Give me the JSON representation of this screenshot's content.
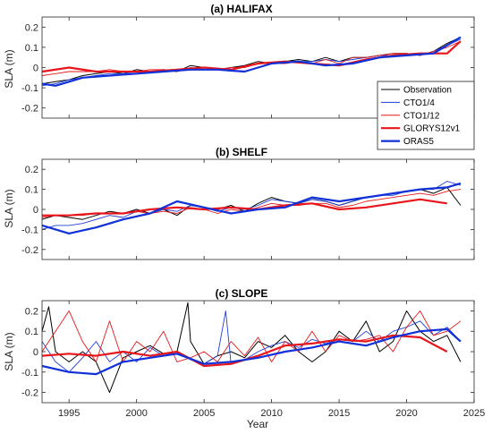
{
  "figure": {
    "xlabel": "Year",
    "x_ticks": [
      1995,
      2000,
      2005,
      2010,
      2015,
      2020,
      2025
    ],
    "xlim": [
      1993,
      2025
    ],
    "colors": {
      "observation": "#000000",
      "cto14": "#1f3fd9",
      "cto112": "#e31a1c",
      "glorys": "#e8151b",
      "oras5": "#1030d8"
    }
  },
  "legend": {
    "placement": "right, inside panel (a)",
    "entries": [
      {
        "label": "Observation",
        "color": "#000000",
        "thick": false
      },
      {
        "label": "CTO1/4",
        "color": "#1f3fd9",
        "thick": false
      },
      {
        "label": "CTO1/12",
        "color": "#e31a1c",
        "thick": false
      },
      {
        "label": "GLORYS12v1",
        "color": "#e8151b",
        "thick": true
      },
      {
        "label": "ORAS5",
        "color": "#1030d8",
        "thick": true
      }
    ]
  },
  "chart_data": [
    {
      "type": "line",
      "title": "(a) HALIFAX",
      "ylabel": "SLA (m)",
      "ylim": [
        -0.25,
        0.25
      ],
      "y_ticks": [
        -0.2,
        -0.1,
        0,
        0.1,
        0.2
      ],
      "xlim": [
        1993,
        2025
      ],
      "series": [
        {
          "name": "Observation",
          "key": "obs",
          "x": [
            1993,
            1994,
            1995,
            1996,
            1997,
            1998,
            1999,
            2000,
            2001,
            2002,
            2003,
            2004,
            2005,
            2006,
            2007,
            2008,
            2009,
            2010,
            2011,
            2012,
            2013,
            2014,
            2015,
            2016,
            2017,
            2018,
            2019,
            2020,
            2021,
            2022,
            2023,
            2024
          ],
          "y": [
            -0.08,
            -0.07,
            -0.06,
            -0.04,
            -0.03,
            -0.02,
            -0.03,
            -0.01,
            -0.02,
            -0.01,
            -0.02,
            0.01,
            0.0,
            -0.01,
            0.0,
            0.01,
            0.03,
            0.02,
            0.03,
            0.04,
            0.03,
            0.05,
            0.03,
            0.05,
            0.05,
            0.06,
            0.07,
            0.07,
            0.06,
            0.08,
            0.12,
            0.15
          ]
        },
        {
          "name": "CTO1/4",
          "key": "cto14",
          "x": [
            1993,
            1994,
            1995,
            1996,
            1997,
            1998,
            1999,
            2000,
            2001,
            2002,
            2003,
            2004,
            2005,
            2006,
            2007,
            2008,
            2009,
            2010,
            2011,
            2012,
            2013,
            2014,
            2015,
            2016,
            2017,
            2018,
            2019,
            2020,
            2021,
            2022,
            2023,
            2024
          ],
          "y": [
            -0.09,
            -0.08,
            -0.06,
            -0.05,
            -0.04,
            -0.03,
            -0.03,
            -0.02,
            -0.02,
            -0.01,
            -0.02,
            0.0,
            -0.01,
            -0.01,
            0.0,
            0.0,
            0.02,
            0.02,
            0.03,
            0.03,
            0.03,
            0.04,
            0.03,
            0.04,
            0.05,
            0.06,
            0.06,
            0.07,
            0.06,
            0.08,
            0.11,
            0.14
          ]
        },
        {
          "name": "CTO1/12",
          "key": "cto112",
          "x": [
            1993,
            1994,
            1995,
            1996,
            1997,
            1998,
            1999,
            2000,
            2001,
            2002,
            2003,
            2004,
            2005,
            2006,
            2007,
            2008,
            2009,
            2010,
            2011,
            2012,
            2013,
            2014,
            2015,
            2016,
            2017,
            2018,
            2019,
            2020,
            2021,
            2022,
            2023,
            2024
          ],
          "y": [
            -0.04,
            -0.03,
            -0.02,
            -0.02,
            -0.02,
            -0.01,
            -0.02,
            -0.02,
            -0.01,
            -0.01,
            -0.02,
            0.0,
            -0.01,
            -0.01,
            0.0,
            0.0,
            0.02,
            0.02,
            0.02,
            0.03,
            0.02,
            0.04,
            0.02,
            0.05,
            0.05,
            0.06,
            0.07,
            0.07,
            0.06,
            0.08,
            0.1,
            0.13
          ]
        },
        {
          "name": "GLORYS12v1",
          "key": "glorys",
          "x": [
            1993,
            1995,
            1997,
            1999,
            2001,
            2003,
            2005,
            2007,
            2009,
            2011,
            2013,
            2015,
            2017,
            2019,
            2021,
            2023,
            2024
          ],
          "y": [
            -0.02,
            0.0,
            -0.02,
            -0.02,
            -0.02,
            -0.01,
            0.0,
            -0.01,
            0.02,
            0.03,
            0.02,
            0.01,
            0.04,
            0.06,
            0.07,
            0.07,
            0.13
          ]
        },
        {
          "name": "ORAS5",
          "key": "oras5",
          "x": [
            1993,
            1994,
            1996,
            1998,
            2000,
            2002,
            2004,
            2006,
            2008,
            2010,
            2012,
            2014,
            2016,
            2018,
            2020,
            2022,
            2024
          ],
          "y": [
            -0.08,
            -0.09,
            -0.05,
            -0.04,
            -0.03,
            -0.02,
            -0.01,
            -0.01,
            -0.02,
            0.02,
            0.03,
            0.01,
            0.02,
            0.05,
            0.06,
            0.07,
            0.15
          ]
        }
      ]
    },
    {
      "type": "line",
      "title": "(b) SHELF",
      "ylabel": "SLA (m)",
      "ylim": [
        -0.25,
        0.25
      ],
      "y_ticks": [
        -0.2,
        -0.1,
        0,
        0.1,
        0.2
      ],
      "xlim": [
        1993,
        2025
      ],
      "series": [
        {
          "name": "Observation",
          "key": "obs",
          "x": [
            1993,
            1994,
            1995,
            1996,
            1997,
            1998,
            1999,
            2000,
            2001,
            2002,
            2003,
            2004,
            2005,
            2006,
            2007,
            2008,
            2009,
            2010,
            2011,
            2012,
            2013,
            2014,
            2015,
            2016,
            2017,
            2018,
            2019,
            2020,
            2021,
            2022,
            2023,
            2024
          ],
          "y": [
            -0.05,
            -0.03,
            -0.04,
            -0.05,
            -0.03,
            -0.01,
            -0.02,
            0.0,
            -0.02,
            0.0,
            -0.03,
            0.02,
            0.01,
            0.0,
            0.02,
            -0.01,
            0.03,
            0.06,
            0.04,
            0.03,
            0.05,
            0.04,
            0.02,
            0.04,
            0.06,
            0.07,
            0.08,
            0.09,
            0.1,
            0.08,
            0.11,
            0.02
          ]
        },
        {
          "name": "CTO1/4",
          "key": "cto14",
          "x": [
            1993,
            1994,
            1995,
            1996,
            1997,
            1998,
            1999,
            2000,
            2001,
            2002,
            2003,
            2004,
            2005,
            2006,
            2007,
            2008,
            2009,
            2010,
            2011,
            2012,
            2013,
            2014,
            2015,
            2016,
            2017,
            2018,
            2019,
            2020,
            2021,
            2022,
            2023,
            2024
          ],
          "y": [
            -0.1,
            -0.08,
            -0.08,
            -0.07,
            -0.05,
            -0.03,
            -0.04,
            -0.01,
            -0.02,
            0.0,
            -0.01,
            0.02,
            0.01,
            -0.01,
            0.01,
            0.0,
            0.02,
            0.05,
            0.04,
            0.03,
            0.05,
            0.04,
            0.02,
            0.04,
            0.06,
            0.07,
            0.07,
            0.09,
            0.1,
            0.1,
            0.14,
            0.12
          ]
        },
        {
          "name": "CTO1/12",
          "key": "cto112",
          "x": [
            1993,
            1994,
            1995,
            1996,
            1997,
            1998,
            1999,
            2000,
            2001,
            2002,
            2003,
            2004,
            2005,
            2006,
            2007,
            2008,
            2009,
            2010,
            2011,
            2012,
            2013,
            2014,
            2015,
            2016,
            2017,
            2018,
            2019,
            2020,
            2021,
            2022,
            2023,
            2024
          ],
          "y": [
            -0.04,
            -0.03,
            -0.03,
            -0.03,
            -0.02,
            -0.02,
            -0.02,
            -0.01,
            -0.02,
            -0.01,
            -0.02,
            0.01,
            0.0,
            -0.02,
            0.0,
            -0.01,
            0.01,
            0.03,
            0.02,
            0.02,
            0.03,
            0.03,
            0.01,
            0.02,
            0.04,
            0.05,
            0.06,
            0.07,
            0.08,
            0.07,
            0.09,
            0.1
          ]
        },
        {
          "name": "GLORYS12v1",
          "key": "glorys",
          "x": [
            1993,
            1995,
            1997,
            1999,
            2001,
            2003,
            2005,
            2007,
            2009,
            2011,
            2013,
            2015,
            2017,
            2019,
            2021,
            2023
          ],
          "y": [
            -0.03,
            -0.03,
            -0.02,
            -0.02,
            0.0,
            0.01,
            0.0,
            0.01,
            0.0,
            0.02,
            0.03,
            0.0,
            0.01,
            0.03,
            0.05,
            0.03
          ]
        },
        {
          "name": "ORAS5",
          "key": "oras5",
          "x": [
            1993,
            1995,
            1997,
            1999,
            2001,
            2003,
            2005,
            2007,
            2009,
            2011,
            2013,
            2015,
            2017,
            2019,
            2021,
            2023,
            2024
          ],
          "y": [
            -0.08,
            -0.12,
            -0.09,
            -0.05,
            -0.02,
            0.04,
            0.01,
            -0.02,
            0.0,
            0.01,
            0.06,
            0.04,
            0.06,
            0.08,
            0.1,
            0.11,
            0.13
          ]
        }
      ]
    },
    {
      "type": "line",
      "title": "(c) SLOPE",
      "ylabel": "SLA (m)",
      "ylim": [
        -0.25,
        0.25
      ],
      "y_ticks": [
        -0.2,
        -0.1,
        0,
        0.1,
        0.2
      ],
      "xlim": [
        1993,
        2025
      ],
      "series": [
        {
          "name": "Observation",
          "key": "obs",
          "x": [
            1993,
            1993.5,
            1994,
            1995,
            1996,
            1997,
            1998,
            1999,
            2000,
            2001,
            2002,
            2003,
            2003.8,
            2004,
            2005,
            2006,
            2007,
            2008,
            2009,
            2010,
            2011,
            2012,
            2013,
            2014,
            2015,
            2016,
            2017,
            2018,
            2019,
            2020,
            2021,
            2022,
            2023,
            2024
          ],
          "y": [
            0.1,
            0.22,
            0.0,
            -0.05,
            0.0,
            -0.05,
            -0.2,
            -0.03,
            0.0,
            0.03,
            -0.01,
            0.0,
            0.24,
            0.05,
            -0.06,
            -0.02,
            0.0,
            -0.03,
            0.05,
            0.02,
            0.08,
            0.0,
            -0.05,
            0.0,
            0.1,
            0.05,
            0.15,
            0.0,
            0.05,
            0.2,
            0.1,
            0.05,
            0.08,
            -0.05
          ]
        },
        {
          "name": "CTO1/4",
          "key": "cto14",
          "x": [
            1993,
            1994,
            1995,
            1996,
            1997,
            1998,
            1999,
            2000,
            2001,
            2002,
            2003,
            2004,
            2005,
            2006,
            2006.6,
            2007,
            2008,
            2009,
            2010,
            2011,
            2012,
            2013,
            2014,
            2015,
            2016,
            2017,
            2018,
            2019,
            2020,
            2021,
            2022,
            2023,
            2024
          ],
          "y": [
            0.05,
            -0.05,
            -0.1,
            -0.03,
            0.05,
            -0.05,
            0.0,
            -0.05,
            0.02,
            -0.02,
            0.0,
            -0.04,
            -0.06,
            -0.02,
            0.2,
            -0.06,
            -0.04,
            0.0,
            0.03,
            0.05,
            0.02,
            0.06,
            0.04,
            0.06,
            0.05,
            0.1,
            0.05,
            0.1,
            0.12,
            0.15,
            0.08,
            0.12,
            0.05
          ]
        },
        {
          "name": "CTO1/12",
          "key": "cto112",
          "x": [
            1993,
            1994,
            1995,
            1996,
            1997,
            1998,
            1999,
            2000,
            2001,
            2002,
            2003,
            2004,
            2005,
            2006,
            2007,
            2008,
            2009,
            2010,
            2011,
            2012,
            2013,
            2014,
            2015,
            2016,
            2017,
            2018,
            2019,
            2020,
            2021,
            2022,
            2023,
            2024
          ],
          "y": [
            0.0,
            0.1,
            0.2,
            0.05,
            -0.05,
            0.15,
            -0.05,
            0.05,
            0.0,
            0.1,
            -0.05,
            -0.03,
            0.0,
            -0.05,
            0.05,
            -0.02,
            0.07,
            -0.05,
            0.05,
            0.0,
            0.1,
            0.0,
            0.08,
            0.05,
            0.06,
            0.08,
            0.0,
            0.12,
            0.2,
            0.08,
            0.1,
            0.15
          ]
        },
        {
          "name": "GLORYS12v1",
          "key": "glorys",
          "x": [
            1993,
            1995,
            1997,
            1999,
            2001,
            2003,
            2005,
            2007,
            2009,
            2011,
            2013,
            2015,
            2017,
            2019,
            2021,
            2023
          ],
          "y": [
            -0.02,
            -0.01,
            -0.02,
            0.0,
            -0.02,
            0.0,
            -0.07,
            -0.06,
            -0.02,
            0.03,
            0.04,
            0.06,
            0.05,
            0.08,
            0.07,
            0.0
          ]
        },
        {
          "name": "ORAS5",
          "key": "oras5",
          "x": [
            1993,
            1995,
            1997,
            1999,
            2001,
            2003,
            2005,
            2007,
            2009,
            2011,
            2013,
            2015,
            2017,
            2019,
            2021,
            2023,
            2024
          ],
          "y": [
            -0.07,
            -0.1,
            -0.11,
            -0.05,
            -0.03,
            -0.01,
            -0.06,
            -0.05,
            -0.03,
            0.0,
            0.02,
            0.05,
            0.03,
            0.07,
            0.1,
            0.11,
            0.05
          ]
        }
      ]
    }
  ]
}
